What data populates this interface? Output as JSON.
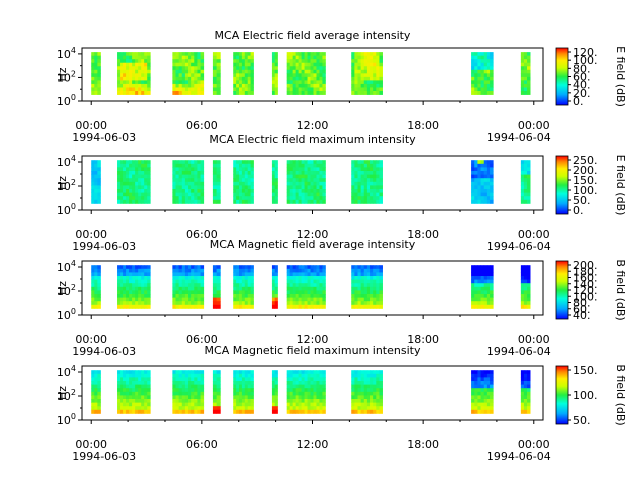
{
  "chart_data": [
    {
      "type": "heatmap",
      "title": "MCA  Electric field average intensity",
      "ylabel": "Hz",
      "yticks": [
        "10^4",
        "10^2",
        "10^0"
      ],
      "xticks": [
        "00:00",
        "06:00",
        "12:00",
        "18:00",
        "00:00"
      ],
      "xdates": [
        "1994-06-03",
        "1994-06-04"
      ],
      "colorbar": {
        "label": "E field (dB)",
        "ticks": [
          "120.",
          "100.",
          "80.",
          "60.",
          "40.",
          "20.",
          "0."
        ]
      },
      "profile": "e-avg",
      "ylim_log10": [
        0,
        4.5
      ],
      "xlim_hours": [
        -0.5,
        24.5
      ],
      "data_hours": [
        [
          0.0,
          0.5
        ],
        [
          1.4,
          3.2
        ],
        [
          4.4,
          6.1
        ],
        [
          6.6,
          7.0
        ],
        [
          7.7,
          8.8
        ],
        [
          9.8,
          10.1
        ],
        [
          10.6,
          12.7
        ],
        [
          14.1,
          15.8
        ],
        [
          20.6,
          21.8
        ],
        [
          23.3,
          23.8
        ]
      ]
    },
    {
      "type": "heatmap",
      "title": "MCA  Electric field maximum intensity",
      "ylabel": "Hz",
      "yticks": [
        "10^4",
        "10^2",
        "10^0"
      ],
      "xticks": [
        "00:00",
        "06:00",
        "12:00",
        "18:00",
        "00:00"
      ],
      "xdates": [
        "1994-06-03",
        "1994-06-04"
      ],
      "colorbar": {
        "label": "E field (dB)",
        "ticks": [
          "250.",
          "200.",
          "150.",
          "100.",
          "50.",
          "0."
        ]
      },
      "profile": "e-max",
      "ylim_log10": [
        0,
        4.5
      ],
      "xlim_hours": [
        -0.5,
        24.5
      ],
      "data_hours": [
        [
          0.0,
          0.5
        ],
        [
          1.4,
          3.2
        ],
        [
          4.4,
          6.1
        ],
        [
          6.6,
          7.0
        ],
        [
          7.7,
          8.8
        ],
        [
          9.8,
          10.1
        ],
        [
          10.6,
          12.7
        ],
        [
          14.1,
          15.8
        ],
        [
          20.6,
          21.8
        ],
        [
          23.3,
          23.8
        ]
      ]
    },
    {
      "type": "heatmap",
      "title": "MCA  Magnetic field average intensity",
      "ylabel": "Hz",
      "yticks": [
        "10^4",
        "10^2",
        "10^0"
      ],
      "xticks": [
        "00:00",
        "06:00",
        "12:00",
        "18:00",
        "00:00"
      ],
      "xdates": [
        "1994-06-03",
        "1994-06-04"
      ],
      "colorbar": {
        "label": "B field (dB)",
        "ticks": [
          "200.",
          "180.",
          "160.",
          "140.",
          "120.",
          "100.",
          "80.",
          "60.",
          "40."
        ]
      },
      "profile": "b-avg",
      "ylim_log10": [
        0,
        4.5
      ],
      "xlim_hours": [
        -0.5,
        24.5
      ],
      "data_hours": [
        [
          0.0,
          0.5
        ],
        [
          1.4,
          3.2
        ],
        [
          4.4,
          6.1
        ],
        [
          6.6,
          7.0
        ],
        [
          7.7,
          8.8
        ],
        [
          9.8,
          10.1
        ],
        [
          10.6,
          12.7
        ],
        [
          14.1,
          15.8
        ],
        [
          20.6,
          21.8
        ],
        [
          23.3,
          23.8
        ]
      ]
    },
    {
      "type": "heatmap",
      "title": "MCA  Magnetic field maximum intensity",
      "ylabel": "Hz",
      "yticks": [
        "10^4",
        "10^2",
        "10^0"
      ],
      "xticks": [
        "00:00",
        "06:00",
        "12:00",
        "18:00",
        "00:00"
      ],
      "xdates": [
        "1994-06-03",
        "1994-06-04"
      ],
      "colorbar": {
        "label": "B field (dB)",
        "ticks": [
          "150.",
          "100.",
          "50."
        ]
      },
      "profile": "b-max",
      "ylim_log10": [
        0,
        4.5
      ],
      "xlim_hours": [
        -0.5,
        24.5
      ],
      "data_hours": [
        [
          0.0,
          0.5
        ],
        [
          1.4,
          3.2
        ],
        [
          4.4,
          6.1
        ],
        [
          6.6,
          7.0
        ],
        [
          7.7,
          8.8
        ],
        [
          9.8,
          10.1
        ],
        [
          10.6,
          12.7
        ],
        [
          14.1,
          15.8
        ],
        [
          20.6,
          21.8
        ],
        [
          23.3,
          23.8
        ]
      ]
    }
  ]
}
